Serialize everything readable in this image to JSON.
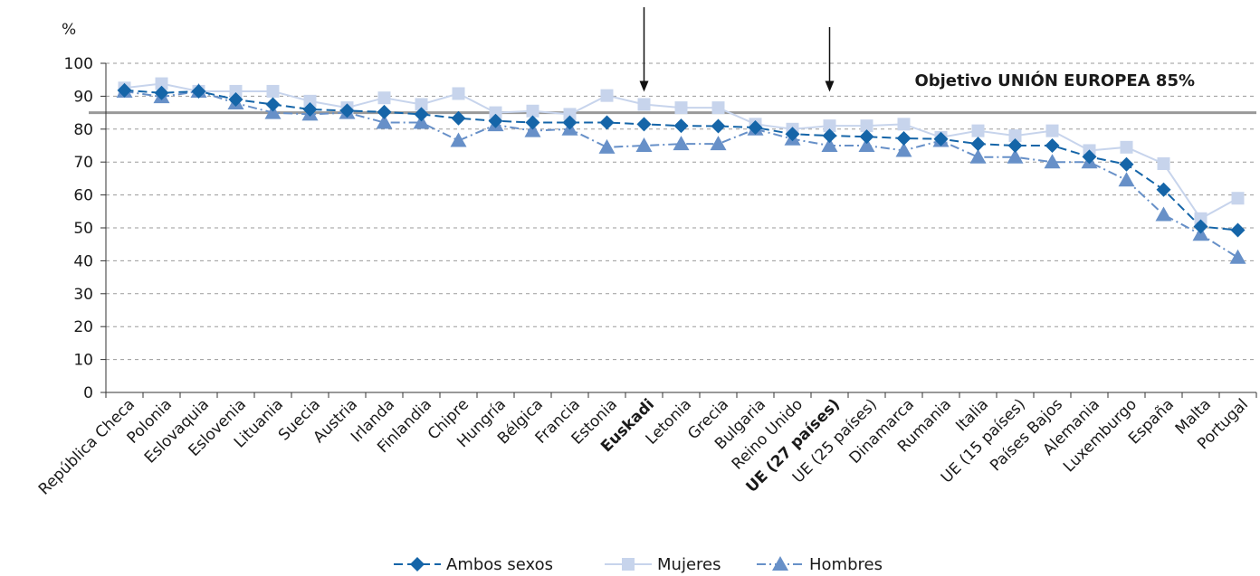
{
  "chart_data": {
    "type": "line",
    "ylabel": "%",
    "ylim": [
      0,
      100
    ],
    "yticks": [
      0,
      10,
      20,
      30,
      40,
      50,
      60,
      70,
      80,
      90,
      100
    ],
    "grid": "horizontal dashed",
    "legend_position": "bottom-center",
    "categories": [
      "República Checa",
      "Polonia",
      "Eslovaquia",
      "Eslovenia",
      "Lituania",
      "Suecia",
      "Austria",
      "Irlanda",
      "Finlandia",
      "Chipre",
      "Hungría",
      "Bélgica",
      "Francia",
      "Estonia",
      "Euskadi",
      "Letonia",
      "Grecia",
      "Bulgaria",
      "Reino Unido",
      "UE (27 países)",
      "UE (25 países)",
      "Dinamarca",
      "Rumania",
      "Italia",
      "UE (15 países)",
      "Países Bajos",
      "Alemania",
      "Luxemburgo",
      "España",
      "Malta",
      "Portugal"
    ],
    "bold_categories": [
      "Euskadi",
      "UE (27 países)"
    ],
    "arrows_at": [
      "Euskadi",
      "UE (27 países)"
    ],
    "target": {
      "value": 85,
      "label": "Objetivo UNIÓN EUROPEA 85%",
      "color": "#999999"
    },
    "series": [
      {
        "name": "Ambos sexos",
        "color": "#1565a8",
        "marker": "diamond",
        "dash": "long-dash",
        "values": [
          91.8,
          91.0,
          91.5,
          89.0,
          87.5,
          86.0,
          85.6,
          85.2,
          84.5,
          83.3,
          82.5,
          82.0,
          82.0,
          82.0,
          81.5,
          81.0,
          80.9,
          80.5,
          78.5,
          78.0,
          77.7,
          77.2,
          77.0,
          75.5,
          75.0,
          75.0,
          71.6,
          69.3,
          61.6,
          50.4,
          49.3
        ]
      },
      {
        "name": "Mujeres",
        "color": "#c7d4ec",
        "marker": "square",
        "dash": "solid",
        "values": [
          92.5,
          93.8,
          91.5,
          91.5,
          91.5,
          88.5,
          86.5,
          89.5,
          87.5,
          90.8,
          85.0,
          85.5,
          84.5,
          90.2,
          87.5,
          86.5,
          86.5,
          81.5,
          80.0,
          81.0,
          81.0,
          81.5,
          77.5,
          79.5,
          78.0,
          79.5,
          73.5,
          74.5,
          69.5,
          52.8,
          59.0
        ]
      },
      {
        "name": "Hombres",
        "color": "#6790c8",
        "marker": "triangle",
        "dash": "dash-dot",
        "values": [
          91.5,
          89.8,
          91.5,
          87.9,
          85.0,
          84.5,
          85.0,
          82.0,
          82.0,
          76.5,
          81.3,
          79.5,
          80.0,
          74.5,
          75.0,
          75.5,
          75.5,
          80.0,
          77.0,
          75.0,
          75.0,
          73.5,
          76.5,
          71.5,
          71.5,
          70.0,
          70.0,
          64.5,
          54.0,
          48.0,
          41.0
        ]
      }
    ]
  }
}
